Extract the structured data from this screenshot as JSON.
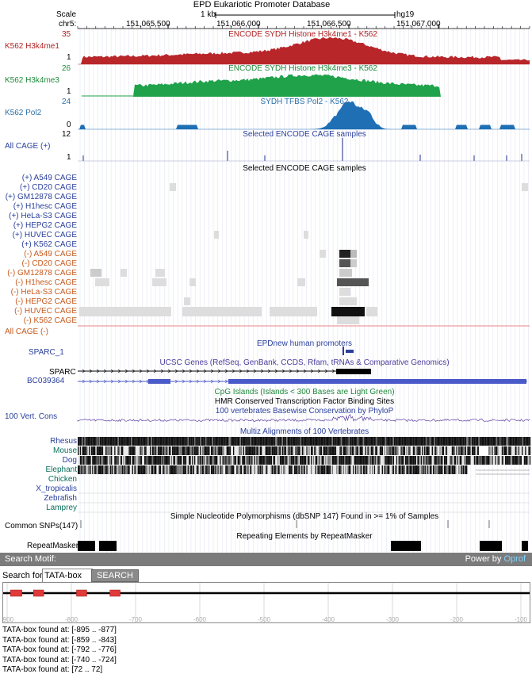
{
  "header": {
    "title": "EPD Eukariotic Promoter Database",
    "scale_label": "Scale",
    "scale_bar": "1 kb",
    "assembly": "hg19",
    "chrom_label": "chr5:",
    "positions": [
      "151,065,500",
      "151,066,000",
      "151,066,500",
      "151,067,000"
    ]
  },
  "tracks": {
    "h3k4me1": {
      "label": "K562 H3k4me1",
      "title": "ENCODE SYDH Histone H3k4me1 - K562",
      "max": "35",
      "min": "1",
      "color": "#b8262a"
    },
    "h3k4me3": {
      "label": "K562 H3k4me3",
      "title": "ENCODE SYDH Histone H3k4me3 - K562",
      "max": "26",
      "min": "1",
      "color": "#1fa24a"
    },
    "pol2": {
      "label": "K562 Pol2",
      "title": "SYDH TFBS Pol2 - K562",
      "max": "24",
      "min": "0",
      "color": "#1f6fb5"
    },
    "allcage_plus": {
      "label": "All CAGE (+)",
      "title": "Selected ENCODE CAGE samples",
      "max": "12",
      "min": "1"
    },
    "cage_samples": {
      "title": "Selected ENCODE CAGE samples",
      "plus": [
        "(+) A549 CAGE",
        "(+) CD20 CAGE",
        "(+) GM12878 CAGE",
        "(+) H1hesc CAGE",
        "(+) HeLa-S3 CAGE",
        "(+) HEPG2 CAGE",
        "(+) HUVEC CAGE",
        "(+) K562 CAGE"
      ],
      "minus": [
        "(-) A549 CAGE",
        "(-) CD20 CAGE",
        "(-) GM12878 CAGE",
        "(-) H1hesc CAGE",
        "(-) HeLa-S3 CAGE",
        "(-) HEPG2 CAGE",
        "(-) HUVEC CAGE",
        "(-) K562 CAGE"
      ]
    },
    "allcage_minus": {
      "label": "All CAGE (-)"
    },
    "epdnew": {
      "title": "EPDnew human promoters",
      "label": "SPARC_1"
    },
    "ucsc": {
      "title": "UCSC Genes (RefSeq, GenBank, CCDS, Rfam, tRNAs & Comparative Genomics)",
      "gene1": "SPARC",
      "gene2": "BC039364"
    },
    "cpg": {
      "title": "CpG Islands (Islands < 300 Bases are Light Green)"
    },
    "tfbs": {
      "title": "HMR Conserved Transcription Factor Binding Sites"
    },
    "cons": {
      "title": "100 vertebrates Basewise Conservation by PhyloP",
      "label": "100 Vert. Cons"
    },
    "multiz": {
      "title": "Multiz Alignments of 100 Vertebrates",
      "species": [
        "Rhesus",
        "Mouse",
        "Dog",
        "Elephant",
        "Chicken",
        "X_tropicalis",
        "Zebrafish",
        "Lamprey"
      ]
    },
    "snp": {
      "title": "Simple Nucleotide Polymorphisms (dbSNP 147) Found in >= 1% of Samples",
      "label": "Common SNPs(147)"
    },
    "rmsk": {
      "title": "Repeating Elements by RepeatMasker",
      "label": "RepeatMasker"
    }
  },
  "motif": {
    "bar_title": "Search Motif:",
    "power_prefix": "Power by",
    "power_brand": "Oprof",
    "search_label": "Search for:",
    "input_value": "TATA-box",
    "button_label": "SEARCH",
    "axis_labels": [
      "-900",
      "-800",
      "-700",
      "-600",
      "-500",
      "-400",
      "-300",
      "-200",
      "-100"
    ],
    "axis_range": [
      -900,
      -100
    ],
    "hits": [
      [
        -895,
        -877
      ],
      [
        -859,
        -843
      ],
      [
        -792,
        -776
      ],
      [
        -740,
        -724
      ]
    ],
    "hit_color": "#e03a3a",
    "results": [
      "TATA-box found at: [-895 .. -877]",
      "TATA-box found at: [-859 .. -843]",
      "TATA-box found at: [-792 .. -776]",
      "TATA-box found at: [-740 .. -724]",
      "TATA-box found at: [72 .. 72]"
    ]
  }
}
